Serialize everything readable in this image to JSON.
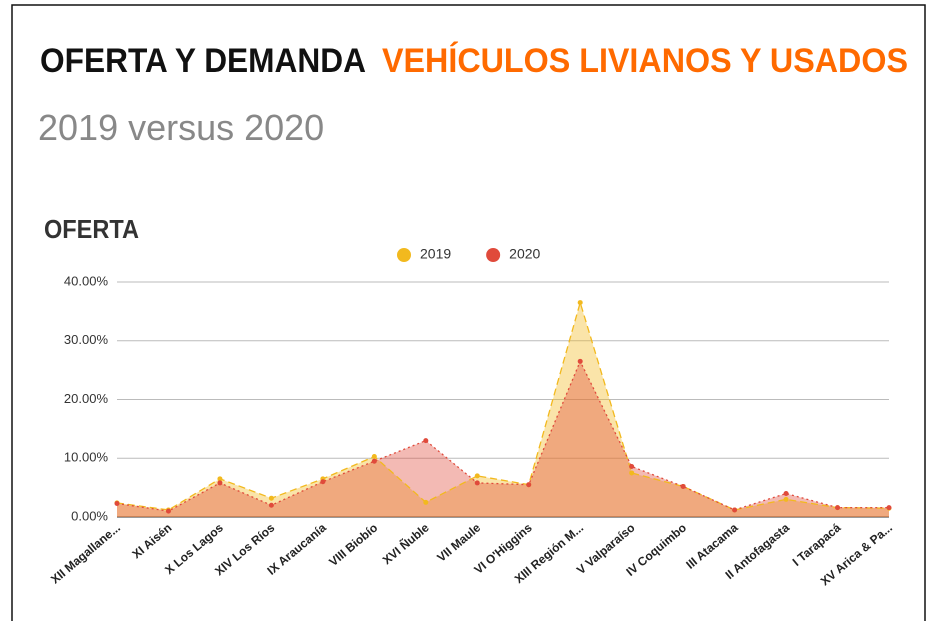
{
  "chart_data": {
    "type": "area",
    "title": "OFERTA Y DEMANDA",
    "title_highlight": "VEHÍCULOS LIVIANOS Y USADOS",
    "subtitle": "2019 versus 2020",
    "section_label": "OFERTA",
    "categories": [
      "XII Magallane...",
      "XI Aisén",
      "X Los Lagos",
      "XIV Los Ríos",
      "IX Araucanía",
      "VIII Biobío",
      "XVI Ñuble",
      "VII Maule",
      "VI O'Higgins",
      "XIII Región M...",
      "V Valparaíso",
      "IV Coquimbo",
      "III Atacama",
      "II Antofagasta",
      "I Tarapacá",
      "XV Arica & Pa..."
    ],
    "series": [
      {
        "name": "2019",
        "color": "#f2b91e",
        "values": [
          2.4,
          1.2,
          6.5,
          3.2,
          6.5,
          10.3,
          2.5,
          7.0,
          5.5,
          36.5,
          7.5,
          5.2,
          1.2,
          3.0,
          1.6,
          1.5
        ]
      },
      {
        "name": "2020",
        "color": "#e04a3b",
        "values": [
          2.3,
          1.0,
          5.8,
          2.0,
          6.0,
          9.5,
          13.0,
          5.8,
          5.5,
          26.5,
          8.6,
          5.2,
          1.2,
          4.0,
          1.6,
          1.6
        ]
      }
    ],
    "ylim": [
      0,
      40
    ],
    "yticks": [
      {
        "value": 0,
        "label": "0.00%"
      },
      {
        "value": 10,
        "label": "10.00%"
      },
      {
        "value": 20,
        "label": "20.00%"
      },
      {
        "value": 30,
        "label": "30.00%"
      },
      {
        "value": 40,
        "label": "40.00%"
      }
    ],
    "grid": true,
    "legend": "top"
  }
}
